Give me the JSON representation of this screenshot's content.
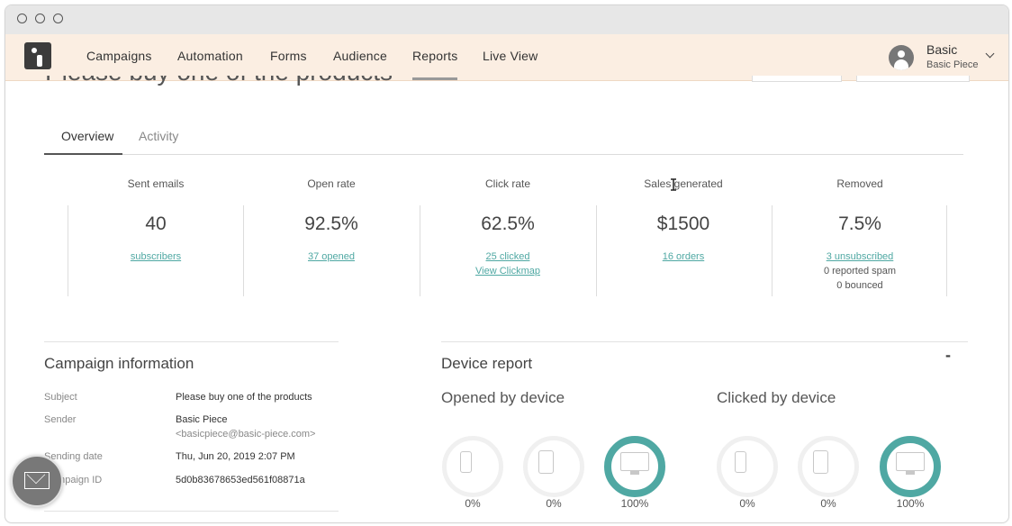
{
  "nav": {
    "items": [
      "Campaigns",
      "Automation",
      "Forms",
      "Audience",
      "Reports",
      "Live View"
    ],
    "active": "Reports",
    "user_name": "Basic",
    "user_account": "Basic Piece"
  },
  "page": {
    "title": "Please buy one of the products"
  },
  "tabs": [
    "Overview",
    "Activity"
  ],
  "active_tab": "Overview",
  "stats": [
    {
      "label": "Sent emails",
      "value": "40",
      "links": [
        "subscribers"
      ],
      "notes": []
    },
    {
      "label": "Open rate",
      "value": "92.5%",
      "links": [
        "37 opened"
      ],
      "notes": []
    },
    {
      "label": "Click rate",
      "value": "62.5%",
      "links": [
        "25 clicked",
        "View Clickmap"
      ],
      "notes": []
    },
    {
      "label": "Sales generated",
      "value": "$1500",
      "links": [
        "16 orders"
      ],
      "notes": []
    },
    {
      "label": "Removed",
      "value": "7.5%",
      "links": [
        "3 unsubscribed"
      ],
      "notes": [
        "0 reported spam",
        "0 bounced"
      ]
    }
  ],
  "campaign_info": {
    "title": "Campaign information",
    "rows": [
      {
        "label": "Subject",
        "value": "Please buy one of the products"
      },
      {
        "label": "Sender",
        "value": "Basic Piece",
        "sub": "<basicpiece@basic-piece.com>"
      },
      {
        "label": "Sending date",
        "value": "Thu, Jun 20, 2019 2:07 PM"
      },
      {
        "label": "Campaign ID",
        "value": "5d0b83678653ed561f08871a"
      }
    ]
  },
  "device_report": {
    "title": "Device report",
    "collapse_label": "-",
    "opened": {
      "title": "Opened by device",
      "devices": [
        {
          "device": "mobile",
          "percent": "0%"
        },
        {
          "device": "tablet",
          "percent": "0%"
        },
        {
          "device": "desktop",
          "percent": "100%"
        }
      ]
    },
    "clicked": {
      "title": "Clicked by device",
      "devices": [
        {
          "device": "mobile",
          "percent": "0%"
        },
        {
          "device": "tablet",
          "percent": "0%"
        },
        {
          "device": "desktop",
          "percent": "100%"
        }
      ]
    }
  },
  "colors": {
    "accent": "#4fa8a3",
    "nav_bg": "#fbeee2"
  },
  "icons": {
    "chat": "envelope-icon",
    "window_controls": [
      "window-close-icon",
      "window-minimize-icon",
      "window-zoom-icon"
    ]
  }
}
